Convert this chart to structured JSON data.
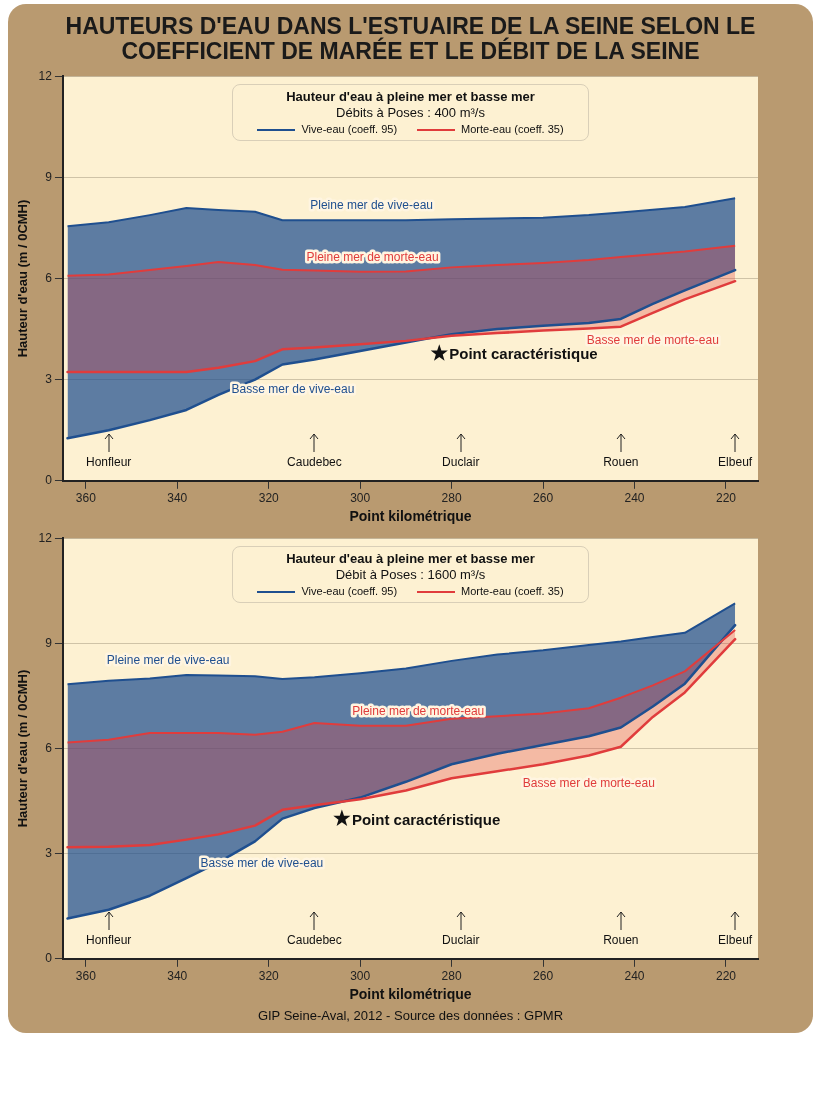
{
  "chart_data": [
    {
      "type": "area",
      "title": "HAUTEURS D'EAU DANS L'ESTUAIRE DE LA SEINE SELON LE COEFFICIENT DE MARÉE ET LE DÉBIT DE LA SEINE",
      "subtitle": "Débits à Poses : 400 m³/s",
      "legend_title": "Hauteur d'eau à pleine mer et basse mer",
      "xlabel": "Point kilométrique",
      "ylabel": "Hauteur d'eau (m / 0CMH)",
      "x": [
        364,
        355,
        346,
        338,
        331,
        323,
        317,
        310,
        300,
        290,
        280,
        270,
        260,
        250,
        243,
        236,
        229,
        218
      ],
      "series": [
        {
          "name": "Vive-eau (coeff. 95)",
          "color": "#1f4f8f",
          "values": [
            7.55,
            7.67,
            7.88,
            8.09,
            8.03,
            7.98,
            7.73,
            7.73,
            7.73,
            7.73,
            7.76,
            7.78,
            7.8,
            7.88,
            7.96,
            8.04,
            8.12,
            8.38
          ]
        },
        {
          "type": "line",
          "color": "#1f4f8f",
          "values": [
            1.26,
            1.5,
            1.8,
            2.1,
            2.55,
            3.0,
            3.45,
            3.6,
            3.85,
            4.1,
            4.35,
            4.5,
            4.6,
            4.68,
            4.8,
            5.25,
            5.65,
            6.25
          ]
        },
        {
          "name": "Morte-eau (coeff. 35)",
          "color": "#e03c3c",
          "values": [
            6.08,
            6.12,
            6.25,
            6.37,
            6.49,
            6.4,
            6.26,
            6.24,
            6.2,
            6.21,
            6.33,
            6.4,
            6.46,
            6.55,
            6.64,
            6.72,
            6.8,
            6.97
          ]
        },
        {
          "type": "line",
          "color": "#e03c3c",
          "values": [
            3.23,
            3.23,
            3.23,
            3.23,
            3.35,
            3.55,
            3.9,
            3.95,
            4.05,
            4.15,
            4.3,
            4.38,
            4.46,
            4.52,
            4.57,
            4.98,
            5.38,
            5.92
          ]
        },
        {
          "type": "scatter",
          "marker": "star",
          "color": "#111111",
          "x": [
            282.7
          ],
          "values": [
            3.78
          ]
        }
      ],
      "xlim": [
        365,
        213
      ],
      "xticks": [
        360,
        340,
        320,
        300,
        280,
        260,
        240,
        220
      ],
      "ylim": [
        0,
        12
      ],
      "yticks": [
        0,
        3,
        6,
        9,
        12
      ],
      "grid": "y",
      "legend": "top",
      "annotations": [
        {
          "text": "Pleine mer de vive-eau",
          "x": 297.5,
          "y": 7.73
        },
        {
          "text": "Pleine mer de morte-eau",
          "x": 297.3,
          "y": 6.2
        },
        {
          "text": "Basse mer de morte-eau",
          "x": 236,
          "y": 4.98
        },
        {
          "text": "Basse mer de vive-eau",
          "x": 314.7,
          "y": 3.52
        },
        {
          "text": "Point caractéristique",
          "x": 282.7,
          "y": 3.78
        }
      ],
      "ref_lines": [
        {
          "axis": "x",
          "value": 355,
          "label": "Honfleur"
        },
        {
          "axis": "x",
          "value": 310,
          "label": "Caudebec"
        },
        {
          "axis": "x",
          "value": 278,
          "label": "Duclair"
        },
        {
          "axis": "x",
          "value": 243,
          "label": "Rouen"
        },
        {
          "axis": "x",
          "value": 218,
          "label": "Elbeuf"
        }
      ]
    },
    {
      "type": "area",
      "subtitle": "Débit à Poses : 1600 m³/s",
      "legend_title": "Hauteur d'eau à pleine mer et basse mer",
      "xlabel": "Point kilométrique",
      "ylabel": "Hauteur d'eau (m / 0CMH)",
      "x": [
        364,
        355,
        346,
        338,
        331,
        323,
        317,
        310,
        300,
        290,
        280,
        270,
        260,
        250,
        243,
        236,
        229,
        218
      ],
      "series": [
        {
          "name": "Vive-eau (coeff. 95)",
          "color": "#1f4f8f",
          "values": [
            7.83,
            7.93,
            8.0,
            8.1,
            8.08,
            8.06,
            7.98,
            8.03,
            8.15,
            8.28,
            8.5,
            8.68,
            8.8,
            8.95,
            9.05,
            9.18,
            9.3,
            10.14
          ]
        },
        {
          "type": "line",
          "color": "#1f4f8f",
          "values": [
            1.15,
            1.4,
            1.8,
            2.3,
            2.75,
            3.35,
            4.0,
            4.3,
            4.6,
            5.05,
            5.55,
            5.85,
            6.1,
            6.35,
            6.6,
            7.2,
            7.85,
            9.52
          ]
        },
        {
          "name": "Morte-eau (coeff. 35)",
          "color": "#e03c3c",
          "values": [
            6.17,
            6.25,
            6.44,
            6.44,
            6.44,
            6.39,
            6.48,
            6.73,
            6.65,
            6.65,
            6.85,
            6.92,
            7.0,
            7.15,
            7.45,
            7.8,
            8.2,
            9.38
          ]
        },
        {
          "type": "line",
          "color": "#e03c3c",
          "values": [
            3.18,
            3.2,
            3.25,
            3.4,
            3.55,
            3.8,
            4.25,
            4.38,
            4.55,
            4.8,
            5.15,
            5.35,
            5.55,
            5.8,
            6.05,
            6.9,
            7.6,
            9.12
          ]
        },
        {
          "type": "scatter",
          "marker": "star",
          "color": "#111111",
          "x": [
            304
          ],
          "values": [
            4.0
          ]
        }
      ],
      "xlim": [
        365,
        213
      ],
      "xticks": [
        360,
        340,
        320,
        300,
        280,
        260,
        240,
        220
      ],
      "ylim": [
        0,
        12
      ],
      "yticks": [
        0,
        3,
        6,
        9,
        12
      ],
      "grid": "y",
      "legend": "top",
      "annotations": [
        {
          "text": "Pleine mer de vive-eau",
          "x": 342,
          "y": 8.1
        },
        {
          "text": "Pleine mer de morte-eau",
          "x": 287.3,
          "y": 6.65
        },
        {
          "text": "Basse mer de morte-eau",
          "x": 250,
          "y": 5.8
        },
        {
          "text": "Basse mer de vive-eau",
          "x": 321.5,
          "y": 3.51
        },
        {
          "text": "Point caractéristique",
          "x": 304,
          "y": 4.0
        },
        "GIP Seine-Aval, 2012 - Source des données : GPMR"
      ],
      "ref_lines": [
        {
          "axis": "x",
          "value": 355,
          "label": "Honfleur"
        },
        {
          "axis": "x",
          "value": 310,
          "label": "Caudebec"
        },
        {
          "axis": "x",
          "value": 278,
          "label": "Duclair"
        },
        {
          "axis": "x",
          "value": 243,
          "label": "Rouen"
        },
        {
          "axis": "x",
          "value": 218,
          "label": "Elbeuf"
        }
      ]
    }
  ]
}
